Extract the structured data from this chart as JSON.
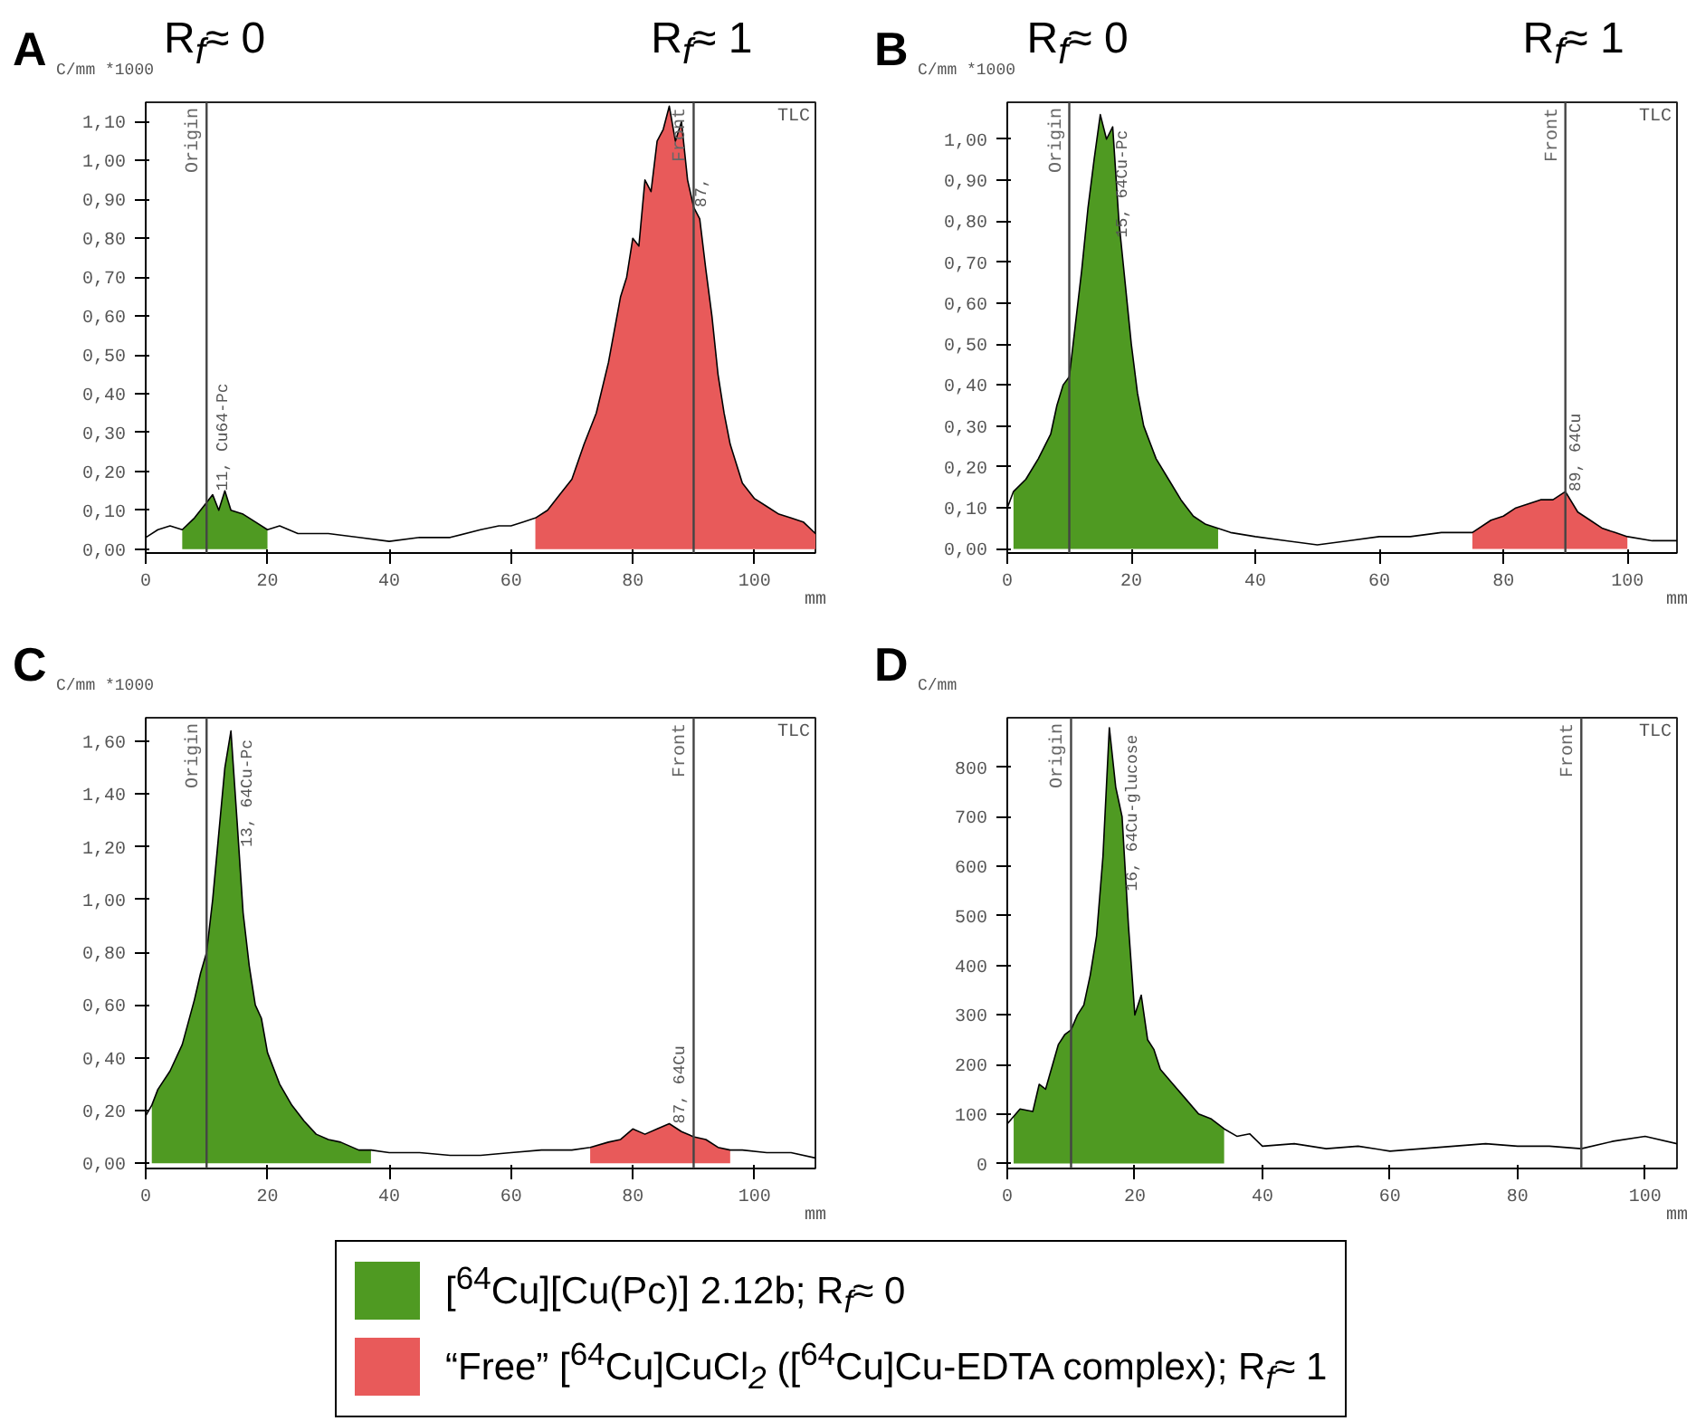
{
  "chart_data": [
    {
      "type": "area",
      "title": "A",
      "ylabel": "C/mm *1000",
      "xlabel": "mm",
      "xlim": [
        0,
        110
      ],
      "ylim": [
        -0.01,
        1.15
      ],
      "xticks": [
        0,
        20,
        40,
        60,
        80,
        100
      ],
      "yticks": [
        {
          "value": 0,
          "label": "0,00"
        },
        {
          "value": 0.1,
          "label": "0,10"
        },
        {
          "value": 0.2,
          "label": "0,20"
        },
        {
          "value": 0.3,
          "label": "0,30"
        },
        {
          "value": 0.4,
          "label": "0,40"
        },
        {
          "value": 0.5,
          "label": "0,50"
        },
        {
          "value": 0.6,
          "label": "0,60"
        },
        {
          "value": 0.7,
          "label": "0,70"
        },
        {
          "value": 0.8,
          "label": "0,80"
        },
        {
          "value": 0.9,
          "label": "0,90"
        },
        {
          "value": 1.0,
          "label": "1,00"
        },
        {
          "value": 1.1,
          "label": "1,10"
        }
      ],
      "legend": "bottom",
      "series": [
        {
          "name": "[$^{64}$Cu][Cu(Pc)] 2.12b; R$_{f}$≈ 0",
          "color": "#4f9a22",
          "x": [
            6,
            8,
            10,
            11,
            12,
            13,
            14,
            16,
            18,
            20
          ],
          "values": [
            0.05,
            0.08,
            0.12,
            0.14,
            0.1,
            0.15,
            0.1,
            0.09,
            0.07,
            0.05
          ]
        },
        {
          "name": "“Free” [$^{64}$Cu]CuCl$_{2}$ ([$^{64}$Cu]Cu-EDTA complex); R$_{f}$≈ 1",
          "color": "#e85a5a",
          "x": [
            64,
            66,
            68,
            70,
            72,
            74,
            76,
            78,
            79,
            80,
            81,
            82,
            83,
            84,
            85,
            86,
            87,
            88,
            89,
            90,
            91,
            92,
            93,
            94,
            95,
            96,
            97,
            98,
            100,
            102,
            104,
            106,
            108,
            110
          ],
          "values": [
            0.08,
            0.1,
            0.14,
            0.18,
            0.27,
            0.35,
            0.48,
            0.65,
            0.7,
            0.8,
            0.78,
            0.95,
            0.92,
            1.05,
            1.08,
            1.14,
            1.05,
            1.1,
            0.95,
            0.88,
            0.85,
            0.72,
            0.6,
            0.45,
            0.35,
            0.27,
            0.22,
            0.17,
            0.13,
            0.11,
            0.09,
            0.08,
            0.07,
            0.04
          ]
        },
        {
          "type": "line",
          "color": "#000000",
          "x": [
            0,
            2,
            4,
            6,
            8,
            10,
            11,
            12,
            13,
            14,
            16,
            18,
            20,
            22,
            25,
            30,
            35,
            40,
            45,
            50,
            55,
            58,
            60,
            62,
            64,
            66,
            68,
            70,
            72,
            74,
            76,
            78,
            79,
            80,
            81,
            82,
            83,
            84,
            85,
            86,
            87,
            88,
            89,
            90,
            91,
            92,
            93,
            94,
            95,
            96,
            97,
            98,
            100,
            102,
            104,
            106,
            108,
            110
          ],
          "values": [
            0.03,
            0.05,
            0.06,
            0.05,
            0.08,
            0.12,
            0.14,
            0.1,
            0.15,
            0.1,
            0.09,
            0.07,
            0.05,
            0.06,
            0.04,
            0.04,
            0.03,
            0.02,
            0.03,
            0.03,
            0.05,
            0.06,
            0.06,
            0.07,
            0.08,
            0.1,
            0.14,
            0.18,
            0.27,
            0.35,
            0.48,
            0.65,
            0.7,
            0.8,
            0.78,
            0.95,
            0.92,
            1.05,
            1.08,
            1.14,
            1.05,
            1.1,
            0.95,
            0.88,
            0.85,
            0.72,
            0.6,
            0.45,
            0.35,
            0.27,
            0.22,
            0.17,
            0.13,
            0.11,
            0.09,
            0.08,
            0.07,
            0.04
          ]
        }
      ],
      "ref_lines": [
        {
          "axis": "x",
          "value": 10,
          "label": "Origin"
        },
        {
          "axis": "x",
          "value": 90,
          "label": "Front"
        }
      ],
      "annotations": [
        {
          "text": "R$_{f}$≈ 0",
          "x": 10,
          "y": 1.15
        },
        {
          "text": "R$_{f}$≈ 1",
          "x": 90,
          "y": 1.15
        },
        "TLC",
        {
          "text": "11, Cu64-Pc",
          "x": 11,
          "y": 0.15
        },
        {
          "text": "87,",
          "x": 90,
          "y": 0.88
        }
      ]
    },
    {
      "type": "area",
      "title": "B",
      "ylabel": "C/mm *1000",
      "xlabel": "mm",
      "xlim": [
        0,
        108
      ],
      "ylim": [
        -0.01,
        1.09
      ],
      "xticks": [
        0,
        20,
        40,
        60,
        80,
        100
      ],
      "yticks": [
        {
          "value": 0,
          "label": "0,00"
        },
        {
          "value": 0.1,
          "label": "0,10"
        },
        {
          "value": 0.2,
          "label": "0,20"
        },
        {
          "value": 0.3,
          "label": "0,30"
        },
        {
          "value": 0.4,
          "label": "0,40"
        },
        {
          "value": 0.5,
          "label": "0,50"
        },
        {
          "value": 0.6,
          "label": "0,60"
        },
        {
          "value": 0.7,
          "label": "0,70"
        },
        {
          "value": 0.8,
          "label": "0,80"
        },
        {
          "value": 0.9,
          "label": "0,90"
        },
        {
          "value": 1.0,
          "label": "1,00"
        }
      ],
      "series": [
        {
          "color": "#4f9a22",
          "x": [
            1,
            3,
            5,
            7,
            8,
            9,
            10,
            11,
            12,
            13,
            14,
            15,
            16,
            17,
            18,
            19,
            20,
            21,
            22,
            24,
            26,
            28,
            30,
            32,
            34
          ],
          "values": [
            0.14,
            0.17,
            0.22,
            0.28,
            0.35,
            0.4,
            0.42,
            0.55,
            0.68,
            0.83,
            0.95,
            1.06,
            1.0,
            1.03,
            0.8,
            0.65,
            0.5,
            0.38,
            0.3,
            0.22,
            0.17,
            0.12,
            0.08,
            0.06,
            0.05
          ]
        },
        {
          "color": "#e85a5a",
          "x": [
            75,
            78,
            80,
            82,
            84,
            86,
            88,
            90,
            92,
            94,
            96,
            98,
            100
          ],
          "values": [
            0.04,
            0.07,
            0.08,
            0.1,
            0.11,
            0.12,
            0.12,
            0.14,
            0.09,
            0.07,
            0.05,
            0.04,
            0.03
          ]
        },
        {
          "type": "line",
          "color": "#000000",
          "x": [
            0,
            1,
            3,
            5,
            7,
            8,
            9,
            10,
            11,
            12,
            13,
            14,
            15,
            16,
            17,
            18,
            19,
            20,
            21,
            22,
            24,
            26,
            28,
            30,
            32,
            34,
            36,
            40,
            45,
            50,
            55,
            60,
            65,
            70,
            75,
            78,
            80,
            82,
            84,
            86,
            88,
            90,
            92,
            94,
            96,
            98,
            100,
            104,
            108
          ],
          "values": [
            0.1,
            0.14,
            0.17,
            0.22,
            0.28,
            0.35,
            0.4,
            0.42,
            0.55,
            0.68,
            0.83,
            0.95,
            1.06,
            1.0,
            1.03,
            0.8,
            0.65,
            0.5,
            0.38,
            0.3,
            0.22,
            0.17,
            0.12,
            0.08,
            0.06,
            0.05,
            0.04,
            0.03,
            0.02,
            0.01,
            0.02,
            0.03,
            0.03,
            0.04,
            0.04,
            0.07,
            0.08,
            0.1,
            0.11,
            0.12,
            0.12,
            0.14,
            0.09,
            0.07,
            0.05,
            0.04,
            0.03,
            0.02,
            0.02
          ]
        }
      ],
      "ref_lines": [
        {
          "axis": "x",
          "value": 10,
          "label": "Origin"
        },
        {
          "axis": "x",
          "value": 90,
          "label": "Front"
        }
      ],
      "annotations": [
        {
          "text": "R$_{f}$≈ 0",
          "x": 10,
          "y": 1.09
        },
        {
          "text": "R$_{f}$≈ 1",
          "x": 90,
          "y": 1.09
        },
        "TLC",
        {
          "text": "15, 64Cu-Pc",
          "x": 17,
          "y": 0.76
        },
        {
          "text": "89, 64Cu",
          "x": 90,
          "y": 0.14
        }
      ]
    },
    {
      "type": "area",
      "title": "C",
      "ylabel": "C/mm *1000",
      "xlabel": "mm",
      "xlim": [
        0,
        110
      ],
      "ylim": [
        -0.02,
        1.69
      ],
      "xticks": [
        0,
        20,
        40,
        60,
        80,
        100
      ],
      "yticks": [
        {
          "value": 0,
          "label": "0,00"
        },
        {
          "value": 0.2,
          "label": "0,20"
        },
        {
          "value": 0.4,
          "label": "0,40"
        },
        {
          "value": 0.6,
          "label": "0,60"
        },
        {
          "value": 0.8,
          "label": "0,80"
        },
        {
          "value": 1.0,
          "label": "1,00"
        },
        {
          "value": 1.2,
          "label": "1,20"
        },
        {
          "value": 1.4,
          "label": "1,40"
        },
        {
          "value": 1.6,
          "label": "1,60"
        }
      ],
      "series": [
        {
          "color": "#4f9a22",
          "x": [
            1,
            2,
            4,
            6,
            8,
            9,
            10,
            11,
            12,
            13,
            14,
            15,
            16,
            17,
            18,
            19,
            20,
            22,
            24,
            26,
            28,
            30,
            32,
            35,
            37
          ],
          "values": [
            0.22,
            0.28,
            0.35,
            0.45,
            0.62,
            0.72,
            0.8,
            1.0,
            1.25,
            1.5,
            1.64,
            1.3,
            0.95,
            0.75,
            0.6,
            0.55,
            0.42,
            0.3,
            0.22,
            0.16,
            0.11,
            0.09,
            0.08,
            0.05,
            0.05
          ]
        },
        {
          "color": "#e85a5a",
          "x": [
            73,
            76,
            78,
            80,
            82,
            84,
            86,
            88,
            90,
            92,
            94,
            96
          ],
          "values": [
            0.06,
            0.08,
            0.09,
            0.13,
            0.11,
            0.13,
            0.15,
            0.12,
            0.1,
            0.09,
            0.06,
            0.05
          ]
        },
        {
          "type": "line",
          "color": "#000000",
          "x": [
            0,
            1,
            2,
            4,
            6,
            8,
            9,
            10,
            11,
            12,
            13,
            14,
            15,
            16,
            17,
            18,
            19,
            20,
            22,
            24,
            26,
            28,
            30,
            32,
            35,
            37,
            40,
            45,
            50,
            55,
            60,
            65,
            70,
            73,
            76,
            78,
            80,
            82,
            84,
            86,
            88,
            90,
            92,
            94,
            96,
            98,
            102,
            106,
            110
          ],
          "values": [
            0.18,
            0.22,
            0.28,
            0.35,
            0.45,
            0.62,
            0.72,
            0.8,
            1.0,
            1.25,
            1.5,
            1.64,
            1.3,
            0.95,
            0.75,
            0.6,
            0.55,
            0.42,
            0.3,
            0.22,
            0.16,
            0.11,
            0.09,
            0.08,
            0.05,
            0.05,
            0.04,
            0.04,
            0.03,
            0.03,
            0.04,
            0.05,
            0.05,
            0.06,
            0.08,
            0.09,
            0.13,
            0.11,
            0.13,
            0.15,
            0.12,
            0.1,
            0.09,
            0.06,
            0.05,
            0.05,
            0.04,
            0.04,
            0.02
          ]
        }
      ],
      "ref_lines": [
        {
          "axis": "x",
          "value": 10,
          "label": "Origin"
        },
        {
          "axis": "x",
          "value": 90,
          "label": "Front"
        }
      ],
      "annotations": [
        "TLC",
        {
          "text": "13, 64Cu-Pc",
          "x": 15,
          "y": 1.2
        },
        {
          "text": "87, 64Cu",
          "x": 86,
          "y": 0.15
        }
      ]
    },
    {
      "type": "area",
      "title": "D",
      "ylabel": "C/mm",
      "xlabel": "mm",
      "xlim": [
        0,
        105
      ],
      "ylim": [
        -10,
        900
      ],
      "xticks": [
        0,
        20,
        40,
        60,
        80,
        100
      ],
      "yticks": [
        0,
        100,
        200,
        300,
        400,
        500,
        600,
        700,
        800
      ],
      "series": [
        {
          "color": "#4f9a22",
          "x": [
            1,
            2,
            4,
            5,
            6,
            8,
            9,
            10,
            11,
            12,
            13,
            14,
            15,
            16,
            17,
            18,
            19,
            20,
            21,
            22,
            23,
            24,
            26,
            28,
            30,
            32,
            34
          ],
          "values": [
            95,
            110,
            105,
            160,
            150,
            240,
            260,
            270,
            300,
            320,
            380,
            460,
            620,
            880,
            760,
            700,
            480,
            300,
            340,
            250,
            230,
            190,
            160,
            130,
            100,
            90,
            70
          ]
        },
        {
          "type": "line",
          "color": "#000000",
          "x": [
            0,
            1,
            2,
            4,
            5,
            6,
            8,
            9,
            10,
            11,
            12,
            13,
            14,
            15,
            16,
            17,
            18,
            19,
            20,
            21,
            22,
            23,
            24,
            26,
            28,
            30,
            32,
            34,
            36,
            38,
            40,
            45,
            50,
            55,
            60,
            65,
            70,
            75,
            80,
            85,
            90,
            95,
            100,
            105
          ],
          "values": [
            80,
            95,
            110,
            105,
            160,
            150,
            240,
            260,
            270,
            300,
            320,
            380,
            460,
            620,
            880,
            760,
            700,
            480,
            300,
            340,
            250,
            230,
            190,
            160,
            130,
            100,
            90,
            70,
            55,
            60,
            35,
            40,
            30,
            35,
            25,
            30,
            35,
            40,
            35,
            35,
            30,
            45,
            55,
            40
          ]
        }
      ],
      "ref_lines": [
        {
          "axis": "x",
          "value": 10,
          "label": "Origin"
        },
        {
          "axis": "x",
          "value": 90,
          "label": "Front"
        }
      ],
      "annotations": [
        "TLC",
        {
          "text": "16, 64Cu-glucose",
          "x": 18,
          "y": 550
        }
      ]
    }
  ]
}
